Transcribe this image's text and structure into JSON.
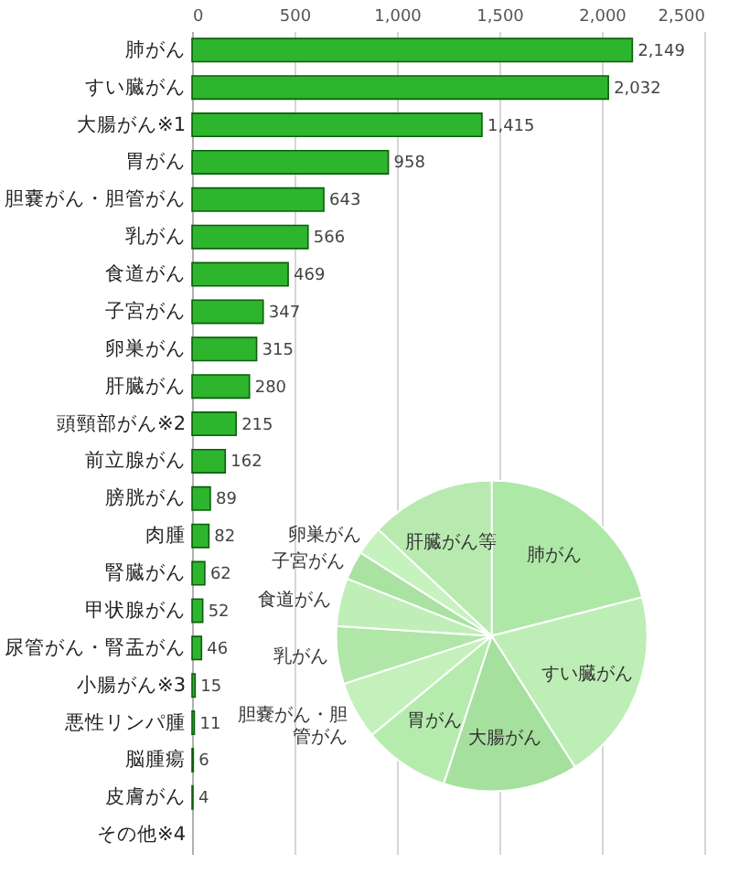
{
  "chart_data": [
    {
      "type": "bar",
      "orientation": "horizontal",
      "categories": [
        "肺がん",
        "すい臓がん",
        "大腸がん※1",
        "胃がん",
        "胆嚢がん・胆管がん",
        "乳がん",
        "食道がん",
        "子宮がん",
        "卵巣がん",
        "肝臓がん",
        "頭頸部がん※2",
        "前立腺がん",
        "膀胱がん",
        "肉腫",
        "腎臓がん",
        "甲状腺がん",
        "尿管がん・腎盂がん",
        "小腸がん※3",
        "悪性リンパ腫",
        "脳腫瘍",
        "皮膚がん",
        "その他※4"
      ],
      "values": [
        2149,
        2032,
        1415,
        958,
        643,
        566,
        469,
        347,
        315,
        280,
        215,
        162,
        89,
        82,
        62,
        52,
        46,
        15,
        11,
        6,
        4,
        null
      ],
      "value_labels": [
        "2,149",
        "2,032",
        "1,415",
        "958",
        "643",
        "566",
        "469",
        "347",
        "315",
        "280",
        "215",
        "162",
        "89",
        "82",
        "62",
        "52",
        "46",
        "15",
        "11",
        "6",
        "4",
        null
      ],
      "color": "#2db52d",
      "xlim": [
        0,
        2500
      ],
      "xticks": [
        0,
        500,
        {
          "value": 1000,
          "label": "1,000"
        },
        {
          "value": 1500,
          "label": "1,500"
        },
        {
          "value": 2000,
          "label": "2,000"
        },
        {
          "value": 2500,
          "label": "2,500"
        }
      ],
      "grid": "x"
    },
    {
      "type": "pie",
      "categories": [
        "肺がん",
        "すい臓がん",
        "大腸がん",
        "胃がん",
        "胆嚢がん・胆管がん",
        "乳がん",
        "食道がん",
        "子宮がん",
        "卵巣がん",
        "肝臓がん等"
      ],
      "values": [
        21,
        20,
        14,
        9,
        6,
        6,
        5,
        3,
        3,
        13
      ],
      "colors": [
        "#aee8a6",
        "#bdeeb5",
        "#a6e09e",
        "#b6ebae",
        "#c4f0bc",
        "#b0e6a8",
        "#bfeeb7",
        "#a9e2a1",
        "#c6f2be",
        "#b8eab0"
      ]
    }
  ]
}
